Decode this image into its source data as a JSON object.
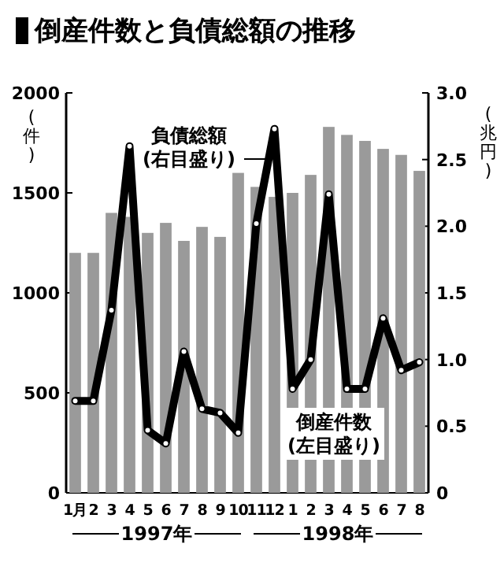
{
  "chart_data": {
    "type": "bar",
    "title": "倒産件数と負債総額の推移",
    "categories": [
      "1月",
      "2",
      "3",
      "4",
      "5",
      "6",
      "7",
      "8",
      "9",
      "10",
      "11",
      "12",
      "1",
      "2",
      "3",
      "4",
      "5",
      "6",
      "7",
      "8"
    ],
    "ylabel": "(件)",
    "y2label": "(兆円)",
    "ylim": [
      0,
      2000
    ],
    "yticks": [
      0,
      500,
      1000,
      1500,
      2000
    ],
    "y2lim": [
      0,
      3
    ],
    "y2ticks": [
      {
        "value": 0,
        "label": "0"
      },
      {
        "value": 0.5,
        "label": "0.5"
      },
      {
        "value": 1,
        "label": "1.0"
      },
      {
        "value": 1.5,
        "label": "1.5"
      },
      {
        "value": 2,
        "label": "2.0"
      },
      {
        "value": 2.5,
        "label": "2.5"
      },
      {
        "value": 3,
        "label": "3.0"
      }
    ],
    "series": [
      {
        "name": "倒産件数 (左目盛り)",
        "color": "#9a9a9a",
        "values": [
          1200,
          1200,
          1400,
          1380,
          1300,
          1350,
          1260,
          1330,
          1280,
          1600,
          1530,
          1480,
          1500,
          1590,
          1830,
          1790,
          1760,
          1720,
          1690,
          1610
        ]
      },
      {
        "name": "負債総額 (右目盛り)",
        "type": "line",
        "axis": "y2",
        "color": "#000000",
        "values": [
          0.69,
          0.69,
          1.37,
          2.6,
          0.47,
          0.37,
          1.06,
          0.63,
          0.6,
          0.45,
          2.02,
          2.73,
          0.78,
          1.0,
          2.24,
          0.78,
          0.78,
          1.31,
          0.92,
          0.98
        ]
      }
    ],
    "marker": "circle",
    "annotations": [
      "1997年",
      "1998年"
    ]
  }
}
